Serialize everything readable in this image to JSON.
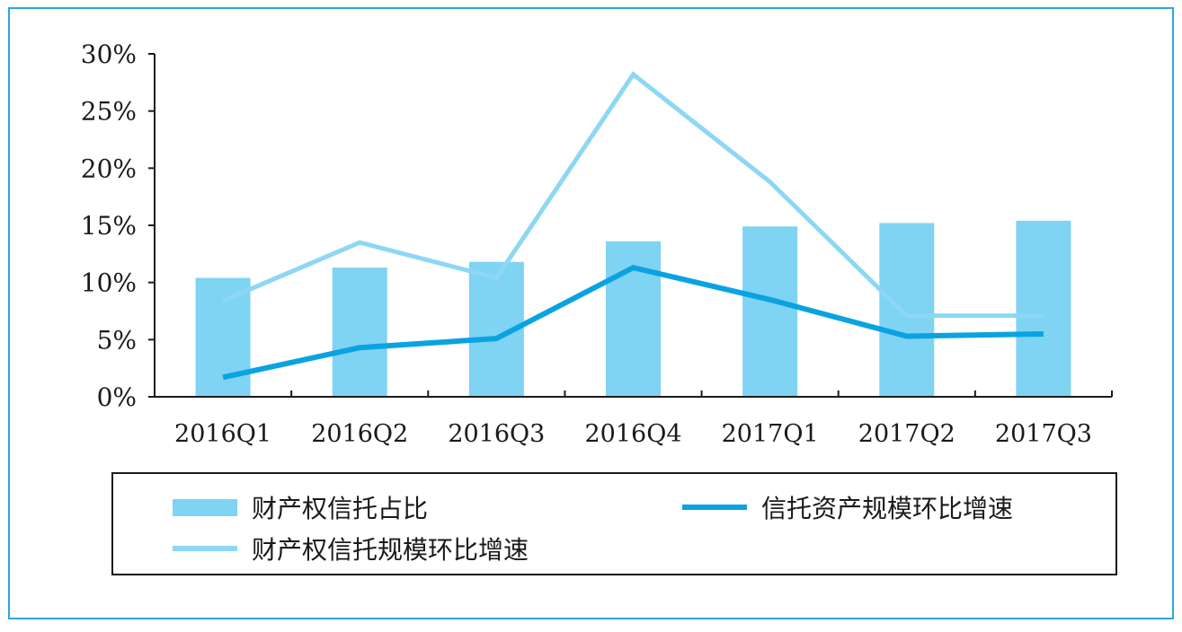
{
  "colors": {
    "frame": "#2aa7dc",
    "bar": "#7fd3f3",
    "line_dark": "#0aa3e2",
    "line_light": "#8dd7f5",
    "axis": "#1a1a1a"
  },
  "chart_data": {
    "type": "bar",
    "categories": [
      "2016Q1",
      "2016Q2",
      "2016Q3",
      "2016Q4",
      "2017Q1",
      "2017Q2",
      "2017Q3"
    ],
    "ylim": [
      0,
      30
    ],
    "yticks": [
      "0%",
      "5%",
      "10%",
      "15%",
      "20%",
      "25%",
      "30%"
    ],
    "grid": false,
    "legend_position": "bottom",
    "series": [
      {
        "name": "财产权信托占比",
        "type": "bar",
        "values": [
          10.4,
          11.3,
          11.8,
          13.6,
          14.9,
          15.2,
          15.4
        ]
      },
      {
        "name": "信托资产规模环比增速",
        "type": "line",
        "values": [
          1.7,
          4.3,
          5.1,
          11.3,
          8.5,
          5.3,
          5.5
        ]
      },
      {
        "name": "财产权信托规模环比增速",
        "type": "line",
        "values": [
          8.4,
          13.5,
          10.4,
          28.2,
          18.8,
          7.1,
          7.1
        ]
      }
    ]
  }
}
